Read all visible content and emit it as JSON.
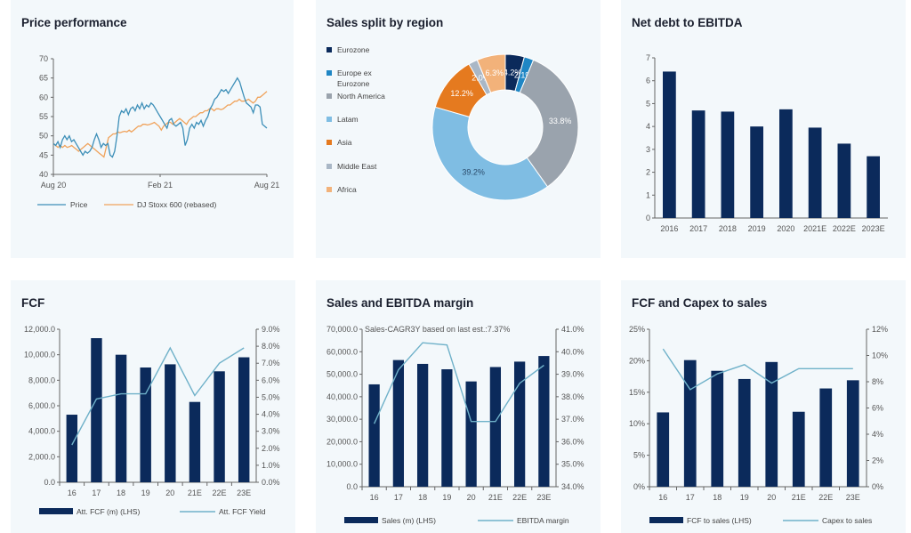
{
  "colors": {
    "navy": "#0b2a5b",
    "line": "#6fb1c9",
    "orange": "#f0a35c",
    "price": "#3d8fb8"
  },
  "panels": {
    "price": {
      "title": "Price performance"
    },
    "region": {
      "title": "Sales split by region"
    },
    "netdebt": {
      "title": "Net debt to EBITDA"
    },
    "fcf": {
      "title": "FCF"
    },
    "sales": {
      "title": "Sales and EBITDA margin",
      "annotation": "Sales-CAGR3Y based on last est.:7.37%"
    },
    "capex": {
      "title": "FCF and Capex to sales"
    }
  },
  "chart_data": [
    {
      "id": "price",
      "type": "line",
      "title": "Price performance",
      "ylim": [
        40,
        70
      ],
      "yticks": [
        "40",
        "45",
        "50",
        "55",
        "60",
        "65",
        "70"
      ],
      "xticks": [
        "Aug 20",
        "Feb 21",
        "Aug 21"
      ],
      "series": [
        {
          "name": "Price",
          "color": "#3d8fb8",
          "values": [
            48,
            47.5,
            48.5,
            47,
            49,
            50,
            49,
            50,
            48.5,
            49,
            48,
            47,
            46,
            45,
            46,
            45.5,
            46,
            47,
            49,
            50.5,
            49,
            47,
            48,
            47.5,
            48,
            45,
            44.5,
            46,
            50,
            55,
            56.5,
            56,
            57,
            55.5,
            57,
            57.5,
            56.5,
            58,
            57,
            58.5,
            57,
            58,
            57.5,
            58.5,
            58,
            57,
            56,
            55,
            54,
            53,
            52,
            54,
            54.5,
            53,
            52.5,
            53,
            53.5,
            52,
            47.5,
            49,
            52,
            53,
            52,
            53.5,
            53,
            54,
            52.5,
            54,
            55,
            57,
            58,
            59.5,
            60,
            61,
            62,
            61.5,
            62,
            61,
            62,
            63,
            64,
            65,
            64,
            62,
            60,
            58.5,
            58,
            57.5,
            56,
            58,
            58,
            57.5,
            53,
            52.5,
            52
          ]
        },
        {
          "name": "DJ Stoxx 600 (rebased)",
          "color": "#f0a35c",
          "values": [
            48,
            47.5,
            47,
            47.5,
            47,
            47.5,
            47,
            47.2,
            47.5,
            47,
            46.5,
            46,
            46.5,
            47,
            47.5,
            48,
            47.5,
            47,
            46.5,
            46,
            45.5,
            45,
            44.5,
            47,
            49.5,
            50,
            50.5,
            50.5,
            51,
            50.8,
            51,
            51.2,
            51,
            51.5,
            51,
            51.5,
            52,
            52.5,
            52.5,
            53,
            53,
            52.8,
            53,
            53.2,
            53.5,
            53,
            52.5,
            51.5,
            52.5,
            53,
            53.5,
            53.5,
            53,
            53.5,
            54,
            54.5,
            54,
            53.5,
            53,
            54,
            54.5,
            55,
            55,
            55.5,
            56,
            56,
            56.5,
            56.5,
            57,
            57,
            56.5,
            57,
            57,
            56.8,
            57,
            57.5,
            58,
            58,
            58.5,
            59,
            59,
            59.5,
            59,
            59,
            59.2,
            59.5,
            59,
            58.5,
            59,
            60,
            60,
            60.5,
            61,
            61.5
          ]
        }
      ]
    },
    {
      "id": "region",
      "type": "pie",
      "title": "Sales split by region",
      "labels": [
        "Eurozone",
        "Europe ex Eurozone",
        "North America",
        "Latam",
        "Asia",
        "Middle East",
        "Africa"
      ],
      "values": [
        4.2,
        2.1,
        33.8,
        39.2,
        12.2,
        2.0,
        6.3
      ],
      "data_labels": [
        "4.2%",
        "2.1%",
        "33.8%",
        "39.2%",
        "12.2%",
        "2.0%",
        "6.3%"
      ],
      "colors": [
        "#0b2a5b",
        "#1f86c4",
        "#9aa3ad",
        "#7fbde3",
        "#e57a1f",
        "#a9b7c6",
        "#f2b27a"
      ]
    },
    {
      "id": "netdebt",
      "type": "bar",
      "title": "Net debt to EBITDA",
      "categories": [
        "2016",
        "2017",
        "2018",
        "2019",
        "2020",
        "2021E",
        "2022E",
        "2023E"
      ],
      "values": [
        6.4,
        4.7,
        4.65,
        4.0,
        4.75,
        3.95,
        3.25,
        2.7
      ],
      "ylim": [
        0,
        7
      ],
      "yticks": [
        "0",
        "1",
        "2",
        "3",
        "4",
        "5",
        "6",
        "7"
      ]
    },
    {
      "id": "fcf",
      "type": "bar",
      "title": "FCF",
      "categories": [
        "16",
        "17",
        "18",
        "19",
        "20",
        "21E",
        "22E",
        "23E"
      ],
      "series": [
        {
          "name": "Att. FCF (m) (LHS)",
          "kind": "bar",
          "axis": "left",
          "values": [
            5300,
            11300,
            10000,
            9000,
            9250,
            6300,
            8700,
            9800
          ]
        },
        {
          "name": "Att. FCF Yield",
          "kind": "line",
          "axis": "right",
          "values": [
            2.2,
            4.9,
            5.2,
            5.2,
            7.9,
            5.1,
            7.0,
            7.9
          ]
        }
      ],
      "ylim": [
        0,
        12000
      ],
      "yticks": [
        "0.0",
        "2,000.0",
        "4,000.0",
        "6,000.0",
        "8,000.0",
        "10,000.0",
        "12,000.0"
      ],
      "y2lim": [
        0,
        9
      ],
      "y2ticks": [
        "0.0%",
        "1.0%",
        "2.0%",
        "3.0%",
        "4.0%",
        "5.0%",
        "6.0%",
        "7.0%",
        "8.0%",
        "9.0%"
      ]
    },
    {
      "id": "sales",
      "type": "bar",
      "title": "Sales and EBITDA margin",
      "annotation": "Sales-CAGR3Y based on last est.:7.37%",
      "categories": [
        "16",
        "17",
        "18",
        "19",
        "20",
        "21E",
        "22E",
        "23E"
      ],
      "series": [
        {
          "name": "Sales (m) (LHS)",
          "kind": "bar",
          "axis": "left",
          "values": [
            45500,
            56300,
            54600,
            52200,
            46800,
            53200,
            55600,
            58100
          ]
        },
        {
          "name": "EBITDA margin",
          "kind": "line",
          "axis": "right",
          "values": [
            36.8,
            39.2,
            40.4,
            40.3,
            36.9,
            36.9,
            38.6,
            39.4
          ]
        }
      ],
      "ylim": [
        0,
        70000
      ],
      "yticks": [
        "0.0",
        "10,000.0",
        "20,000.0",
        "30,000.0",
        "40,000.0",
        "50,000.0",
        "60,000.0",
        "70,000.0"
      ],
      "y2lim": [
        34,
        41
      ],
      "y2ticks": [
        "34.0%",
        "35.0%",
        "36.0%",
        "37.0%",
        "38.0%",
        "39.0%",
        "40.0%",
        "41.0%"
      ]
    },
    {
      "id": "capex",
      "type": "bar",
      "title": "FCF and Capex to sales",
      "categories": [
        "16",
        "17",
        "18",
        "19",
        "20",
        "21E",
        "22E",
        "23E"
      ],
      "series": [
        {
          "name": "FCF to sales (LHS)",
          "kind": "bar",
          "axis": "left",
          "values": [
            11.8,
            20.1,
            18.4,
            17.1,
            19.8,
            11.9,
            15.6,
            16.9
          ]
        },
        {
          "name": "Capex to sales",
          "kind": "line",
          "axis": "right",
          "values": [
            10.5,
            7.4,
            8.6,
            9.3,
            7.9,
            9.0,
            9.0,
            9.0
          ]
        }
      ],
      "ylim": [
        0,
        25
      ],
      "yticks": [
        "0%",
        "5%",
        "10%",
        "15%",
        "20%",
        "25%"
      ],
      "y2lim": [
        0,
        12
      ],
      "y2ticks": [
        "0%",
        "2%",
        "4%",
        "6%",
        "8%",
        "10%",
        "12%"
      ]
    }
  ]
}
